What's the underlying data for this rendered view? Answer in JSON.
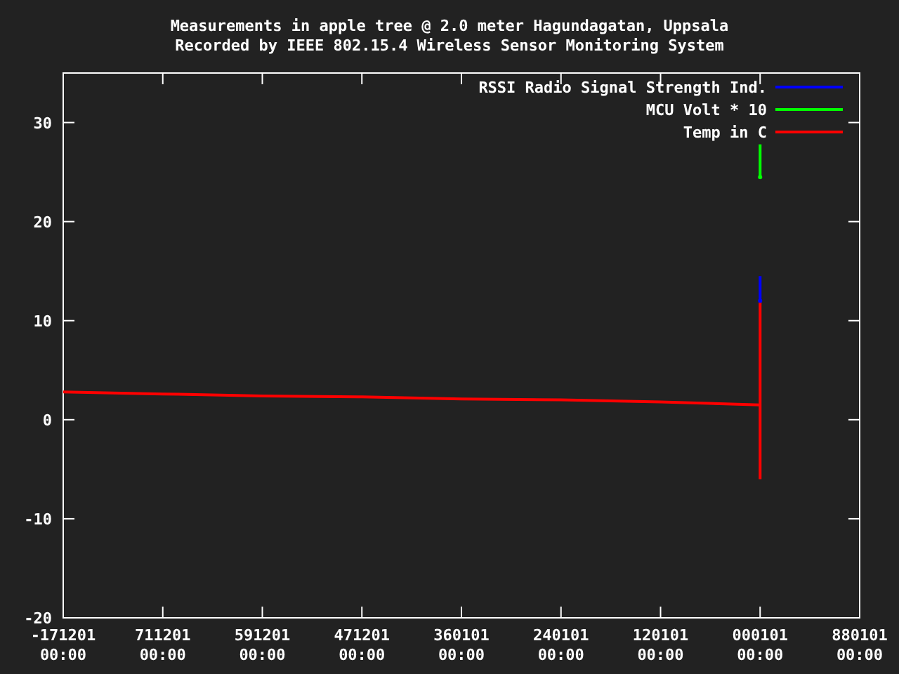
{
  "chart_data": {
    "type": "line",
    "title": "Measurements in apple tree @ 2.0 meter Hagundagatan, Uppsala",
    "subtitle": "Recorded by IEEE 802.15.4 Wireless Sensor Monitoring System",
    "categories": [
      "-171201\n00:00",
      "711201\n00:00",
      "591201\n00:00",
      "471201\n00:00",
      "360101\n00:00",
      "240101\n00:00",
      "120101\n00:00",
      "000101\n00:00",
      "880101\n00:00"
    ],
    "ylim": [
      -20,
      35
    ],
    "yticks": [
      -20,
      -10,
      0,
      10,
      20,
      30
    ],
    "grid": false,
    "legend": "top right",
    "line_style": "solid",
    "series": [
      {
        "name": "RSSI Radio Signal Strength Ind.",
        "color": "#0000ff",
        "marker": "circle",
        "values": [
          null,
          null,
          null,
          null,
          null,
          null,
          null,
          12,
          null
        ],
        "errors": [
          null,
          null,
          null,
          null,
          null,
          null,
          null,
          [
            12,
            14.5
          ],
          null
        ]
      },
      {
        "name": "MCU Volt * 10",
        "color": "#00ff00",
        "marker": "circle",
        "values": [
          null,
          null,
          null,
          null,
          null,
          null,
          null,
          24.5,
          null
        ],
        "errors": [
          null,
          null,
          null,
          null,
          null,
          null,
          null,
          [
            24.5,
            27.8
          ],
          null
        ]
      },
      {
        "name": "Temp in C",
        "color": "#ff0000",
        "values": [
          2.8,
          2.6,
          2.4,
          2.3,
          2.1,
          2.0,
          1.8,
          1.5,
          null
        ],
        "errors": [
          null,
          null,
          null,
          null,
          null,
          null,
          null,
          [
            -6,
            12
          ],
          null
        ]
      }
    ]
  }
}
